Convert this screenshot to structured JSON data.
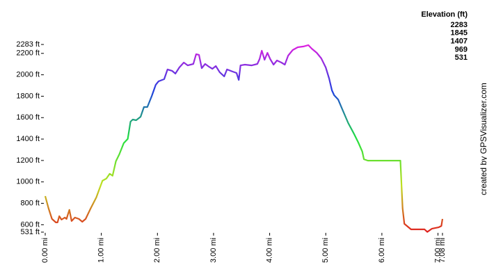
{
  "chart_data": {
    "type": "line",
    "x": [
      0.0,
      0.06,
      0.12,
      0.19,
      0.22,
      0.25,
      0.29,
      0.35,
      0.38,
      0.43,
      0.47,
      0.53,
      0.6,
      0.66,
      0.72,
      0.81,
      0.91,
      0.97,
      1.02,
      1.09,
      1.15,
      1.2,
      1.26,
      1.32,
      1.4,
      1.47,
      1.52,
      1.56,
      1.62,
      1.7,
      1.76,
      1.82,
      1.9,
      1.97,
      2.02,
      2.12,
      2.18,
      2.26,
      2.32,
      2.39,
      2.47,
      2.54,
      2.64,
      2.69,
      2.74,
      2.79,
      2.85,
      2.92,
      2.98,
      3.04,
      3.11,
      3.19,
      3.24,
      3.34,
      3.41,
      3.45,
      3.48,
      3.56,
      3.68,
      3.78,
      3.82,
      3.86,
      3.91,
      3.96,
      4.01,
      4.07,
      4.13,
      4.21,
      4.27,
      4.33,
      4.41,
      4.5,
      4.6,
      4.69,
      4.75,
      4.84,
      4.92,
      5.0,
      5.06,
      5.11,
      5.15,
      5.22,
      5.31,
      5.4,
      5.5,
      5.58,
      5.65,
      5.68,
      5.75,
      6.33,
      6.37,
      6.4,
      6.52,
      6.7,
      6.76,
      6.81,
      6.89,
      7.01,
      7.06,
      7.08
    ],
    "values": [
      868,
      752,
      654,
      622,
      622,
      680,
      648,
      667,
      654,
      739,
      635,
      667,
      654,
      628,
      654,
      752,
      855,
      940,
      1011,
      1031,
      1076,
      1057,
      1193,
      1258,
      1362,
      1401,
      1563,
      1582,
      1576,
      1608,
      1699,
      1699,
      1803,
      1907,
      1939,
      1959,
      2050,
      2037,
      2011,
      2069,
      2114,
      2088,
      2101,
      2192,
      2186,
      2062,
      2101,
      2075,
      2056,
      2082,
      2024,
      1985,
      2050,
      2030,
      2017,
      1952,
      2088,
      2095,
      2088,
      2101,
      2147,
      2225,
      2140,
      2205,
      2147,
      2095,
      2134,
      2114,
      2095,
      2179,
      2231,
      2257,
      2264,
      2277,
      2244,
      2205,
      2153,
      2069,
      1965,
      1855,
      1809,
      1770,
      1660,
      1550,
      1452,
      1368,
      1284,
      1212,
      1199,
      1199,
      752,
      609,
      557,
      557,
      557,
      533,
      563,
      576,
      589,
      654
    ],
    "xlim": [
      0,
      7.08
    ],
    "ylim": [
      531,
      2283
    ],
    "xticks": [
      {
        "value": 0,
        "label": "0.00 mi"
      },
      {
        "value": 1,
        "label": "1.00 mi"
      },
      {
        "value": 2,
        "label": "2.00 mi"
      },
      {
        "value": 3,
        "label": "3.00 mi"
      },
      {
        "value": 4,
        "label": "4.00 mi"
      },
      {
        "value": 5,
        "label": "5.00 mi"
      },
      {
        "value": 6,
        "label": "6.00 mi"
      },
      {
        "value": 7,
        "label": "7.00 mi"
      },
      {
        "value": 7.08,
        "label": "7.08 mi"
      }
    ],
    "yticks": [
      {
        "value": 531,
        "label": "531 ft"
      },
      {
        "value": 600,
        "label": "600 ft"
      },
      {
        "value": 800,
        "label": "800 ft"
      },
      {
        "value": 1000,
        "label": "1000 ft"
      },
      {
        "value": 1200,
        "label": "1200 ft"
      },
      {
        "value": 1400,
        "label": "1400 ft"
      },
      {
        "value": 1600,
        "label": "1600 ft"
      },
      {
        "value": 1800,
        "label": "1800 ft"
      },
      {
        "value": 2000,
        "label": "2000 ft"
      },
      {
        "value": 2200,
        "label": "2200 ft"
      },
      {
        "value": 2283,
        "label": "2283 ft"
      }
    ],
    "legend": {
      "title": "Elevation (ft)",
      "entries": [
        {
          "value": 2283,
          "color": "#e020e0"
        },
        {
          "value": 1845,
          "color": "#2040e0"
        },
        {
          "value": 1407,
          "color": "#20e040"
        },
        {
          "value": 969,
          "color": "#c0e020"
        },
        {
          "value": 531,
          "color": "#e02020"
        }
      ]
    },
    "credit": "created by GPSVisualizer.com"
  }
}
